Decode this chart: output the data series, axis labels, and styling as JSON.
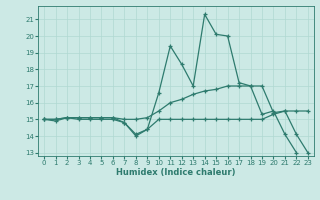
{
  "xlabel": "Humidex (Indice chaleur)",
  "ylabel": "",
  "background_color": "#cce9e5",
  "line_color": "#2e7b6e",
  "xlim": [
    -0.5,
    23.5
  ],
  "ylim": [
    12.8,
    21.8
  ],
  "yticks": [
    13,
    14,
    15,
    16,
    17,
    18,
    19,
    20,
    21
  ],
  "xticks": [
    0,
    1,
    2,
    3,
    4,
    5,
    6,
    7,
    8,
    9,
    10,
    11,
    12,
    13,
    14,
    15,
    16,
    17,
    18,
    19,
    20,
    21,
    22,
    23
  ],
  "series": [
    {
      "x": [
        0,
        1,
        2,
        3,
        4,
        5,
        6,
        7,
        8,
        9,
        10,
        11,
        12,
        13,
        14,
        15,
        16,
        17,
        18,
        19,
        20,
        21,
        22,
        23
      ],
      "y": [
        15.0,
        15.0,
        15.1,
        15.1,
        15.1,
        15.1,
        15.1,
        14.8,
        14.1,
        14.4,
        16.6,
        19.4,
        18.3,
        17.0,
        21.3,
        20.1,
        20.0,
        17.2,
        17.0,
        15.3,
        15.5,
        14.1,
        13.0,
        null
      ]
    },
    {
      "x": [
        0,
        1,
        2,
        3,
        4,
        5,
        6,
        7,
        8,
        9,
        10,
        11,
        12,
        13,
        14,
        15,
        16,
        17,
        18,
        19,
        20,
        21,
        22,
        23
      ],
      "y": [
        15.0,
        15.0,
        15.1,
        15.1,
        15.1,
        15.1,
        15.1,
        15.0,
        15.0,
        15.1,
        15.5,
        16.0,
        16.2,
        16.5,
        16.7,
        16.8,
        17.0,
        17.0,
        17.0,
        17.0,
        15.4,
        15.5,
        15.5,
        15.5
      ]
    },
    {
      "x": [
        0,
        1,
        2,
        3,
        4,
        5,
        6,
        7,
        8,
        9,
        10,
        11,
        12,
        13,
        14,
        15,
        16,
        17,
        18,
        19,
        20,
        21,
        22,
        23
      ],
      "y": [
        15.0,
        14.9,
        15.1,
        15.0,
        15.0,
        15.0,
        15.0,
        14.8,
        14.0,
        14.4,
        15.0,
        15.0,
        15.0,
        15.0,
        15.0,
        15.0,
        15.0,
        15.0,
        15.0,
        15.0,
        15.3,
        15.5,
        14.1,
        13.0
      ]
    }
  ]
}
